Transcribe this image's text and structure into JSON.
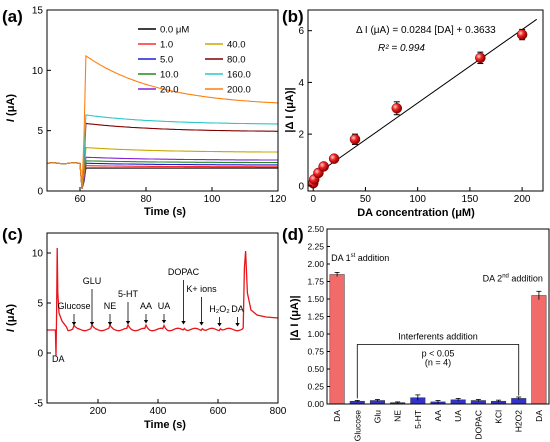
{
  "panels": {
    "a": {
      "label": "(a)",
      "chart_data": {
        "type": "line",
        "xlabel": "Time (s)",
        "ylabel_italic": "I",
        "ylabel_rest": " (μA)",
        "xlim": [
          50,
          120
        ],
        "ylim": [
          0,
          15
        ],
        "xticks": [
          60,
          80,
          100,
          120
        ],
        "yticks": [
          0,
          5,
          10,
          15
        ],
        "legend_position": "top-right",
        "series": [
          {
            "name": "0.0 μM",
            "color": "#000000",
            "baseline": 2.3,
            "peak": 1.9,
            "end": 1.9
          },
          {
            "name": "1.0",
            "color": "#ff2a2a",
            "baseline": 2.3,
            "peak": 2.1,
            "end": 2.0
          },
          {
            "name": "5.0",
            "color": "#1f1fd6",
            "baseline": 2.3,
            "peak": 2.3,
            "end": 2.15
          },
          {
            "name": "10.0",
            "color": "#1f8a1f",
            "baseline": 2.3,
            "peak": 2.5,
            "end": 2.35
          },
          {
            "name": "20.0",
            "color": "#8a1fd6",
            "baseline": 2.3,
            "peak": 2.8,
            "end": 2.55
          },
          {
            "name": "40.0",
            "color": "#c8a800",
            "baseline": 2.3,
            "peak": 3.6,
            "end": 3.2
          },
          {
            "name": "80.0",
            "color": "#800000",
            "baseline": 2.3,
            "peak": 5.6,
            "end": 4.9
          },
          {
            "name": "160.0",
            "color": "#2cc7c7",
            "baseline": 2.3,
            "peak": 6.3,
            "end": 5.5
          },
          {
            "name": "200.0",
            "color": "#ff7f0e",
            "baseline": 2.3,
            "peak": 11.2,
            "end": 7.0
          }
        ]
      }
    },
    "b": {
      "label": "(b)",
      "chart_data": {
        "type": "scatter",
        "xlabel": "DA concentration (μM)",
        "ylabel": "|Δ I (μA)|",
        "xlim": [
          -5,
          220
        ],
        "ylim": [
          -0.2,
          6.8
        ],
        "xticks": [
          0,
          50,
          100,
          150,
          200
        ],
        "yticks": [
          0,
          2,
          4,
          6
        ],
        "equation": "Δ I (μA) = 0.0284 [DA] + 0.3633",
        "r2_label": "R² = 0.994",
        "fit": {
          "slope": 0.0284,
          "intercept": 0.3633
        },
        "x": [
          0,
          1,
          5,
          10,
          20,
          40,
          80,
          160,
          200
        ],
        "y": [
          0.1,
          0.25,
          0.5,
          0.75,
          1.05,
          1.8,
          3.0,
          4.95,
          5.85
        ],
        "err": [
          0.1,
          0.1,
          0.12,
          0.12,
          0.12,
          0.2,
          0.25,
          0.22,
          0.2
        ]
      }
    },
    "c": {
      "label": "(c)",
      "chart_data": {
        "type": "line",
        "xlabel": "Time (s)",
        "ylabel_italic": "I",
        "ylabel_rest": " (μA)",
        "xlim": [
          30,
          800
        ],
        "ylim": [
          -5,
          12
        ],
        "xticks": [
          200,
          400,
          600,
          800
        ],
        "yticks": [
          -5,
          0,
          5,
          10
        ],
        "color": "#e8141a",
        "annotations": [
          {
            "text": "DA",
            "x": 60,
            "y": -0.5,
            "arrow_y": 1.0
          },
          {
            "text": "Glucose",
            "x": 120,
            "y": 4.4,
            "arrow_y": 2.6
          },
          {
            "text": "GLU",
            "x": 180,
            "y": 6.9,
            "arrow_y": 2.6
          },
          {
            "text": "NE",
            "x": 240,
            "y": 4.4,
            "arrow_y": 2.6
          },
          {
            "text": "5-HT",
            "x": 300,
            "y": 5.6,
            "arrow_y": 2.7
          },
          {
            "text": "AA",
            "x": 360,
            "y": 4.4,
            "arrow_y": 2.8
          },
          {
            "text": "UA",
            "x": 420,
            "y": 4.4,
            "arrow_y": 2.8
          },
          {
            "text": "DOPAC",
            "x": 485,
            "y": 7.8,
            "arrow_y": 2.7
          },
          {
            "text": "K+ ions",
            "x": 545,
            "y": 6.1,
            "arrow_y": 2.6
          },
          {
            "text": "H₂O₂",
            "x": 605,
            "y": 4.1,
            "arrow_y": 2.5
          },
          {
            "text": "DA",
            "x": 665,
            "y": 4.1,
            "arrow_y": 2.5
          }
        ]
      }
    },
    "d": {
      "label": "(d)",
      "chart_data": {
        "type": "bar",
        "ylabel": "|Δ I (μA)|",
        "ylim": [
          0,
          2.5
        ],
        "yticks": [
          0.0,
          0.25,
          0.5,
          0.75,
          1.0,
          1.25,
          1.5,
          1.75,
          2.0,
          2.25,
          2.5
        ],
        "categories": [
          "DA",
          "Glucose",
          "Glu",
          "NE",
          "5-HT",
          "AA",
          "UA",
          "DOPAC",
          "KCl",
          "H2O2",
          "DA"
        ],
        "values": [
          1.85,
          0.04,
          0.05,
          0.02,
          0.09,
          0.03,
          0.06,
          0.05,
          0.04,
          0.08,
          1.55
        ],
        "errors": [
          0.03,
          0.01,
          0.015,
          0.01,
          0.04,
          0.02,
          0.02,
          0.015,
          0.015,
          0.02,
          0.06
        ],
        "colors": [
          "#f26b6b",
          "#3333cc",
          "#3333cc",
          "#3333cc",
          "#3333cc",
          "#3333cc",
          "#3333cc",
          "#3333cc",
          "#3333cc",
          "#3333cc",
          "#f26b6b"
        ],
        "first_label": "DA 1",
        "first_sup": "st",
        "first_tail": " addition",
        "second_label": "DA 2",
        "second_sup": "nd",
        "second_tail": " addition",
        "interf_label": "Interferents addition",
        "p_label": "p < 0.05",
        "n_label": "(n = 4)"
      }
    }
  }
}
